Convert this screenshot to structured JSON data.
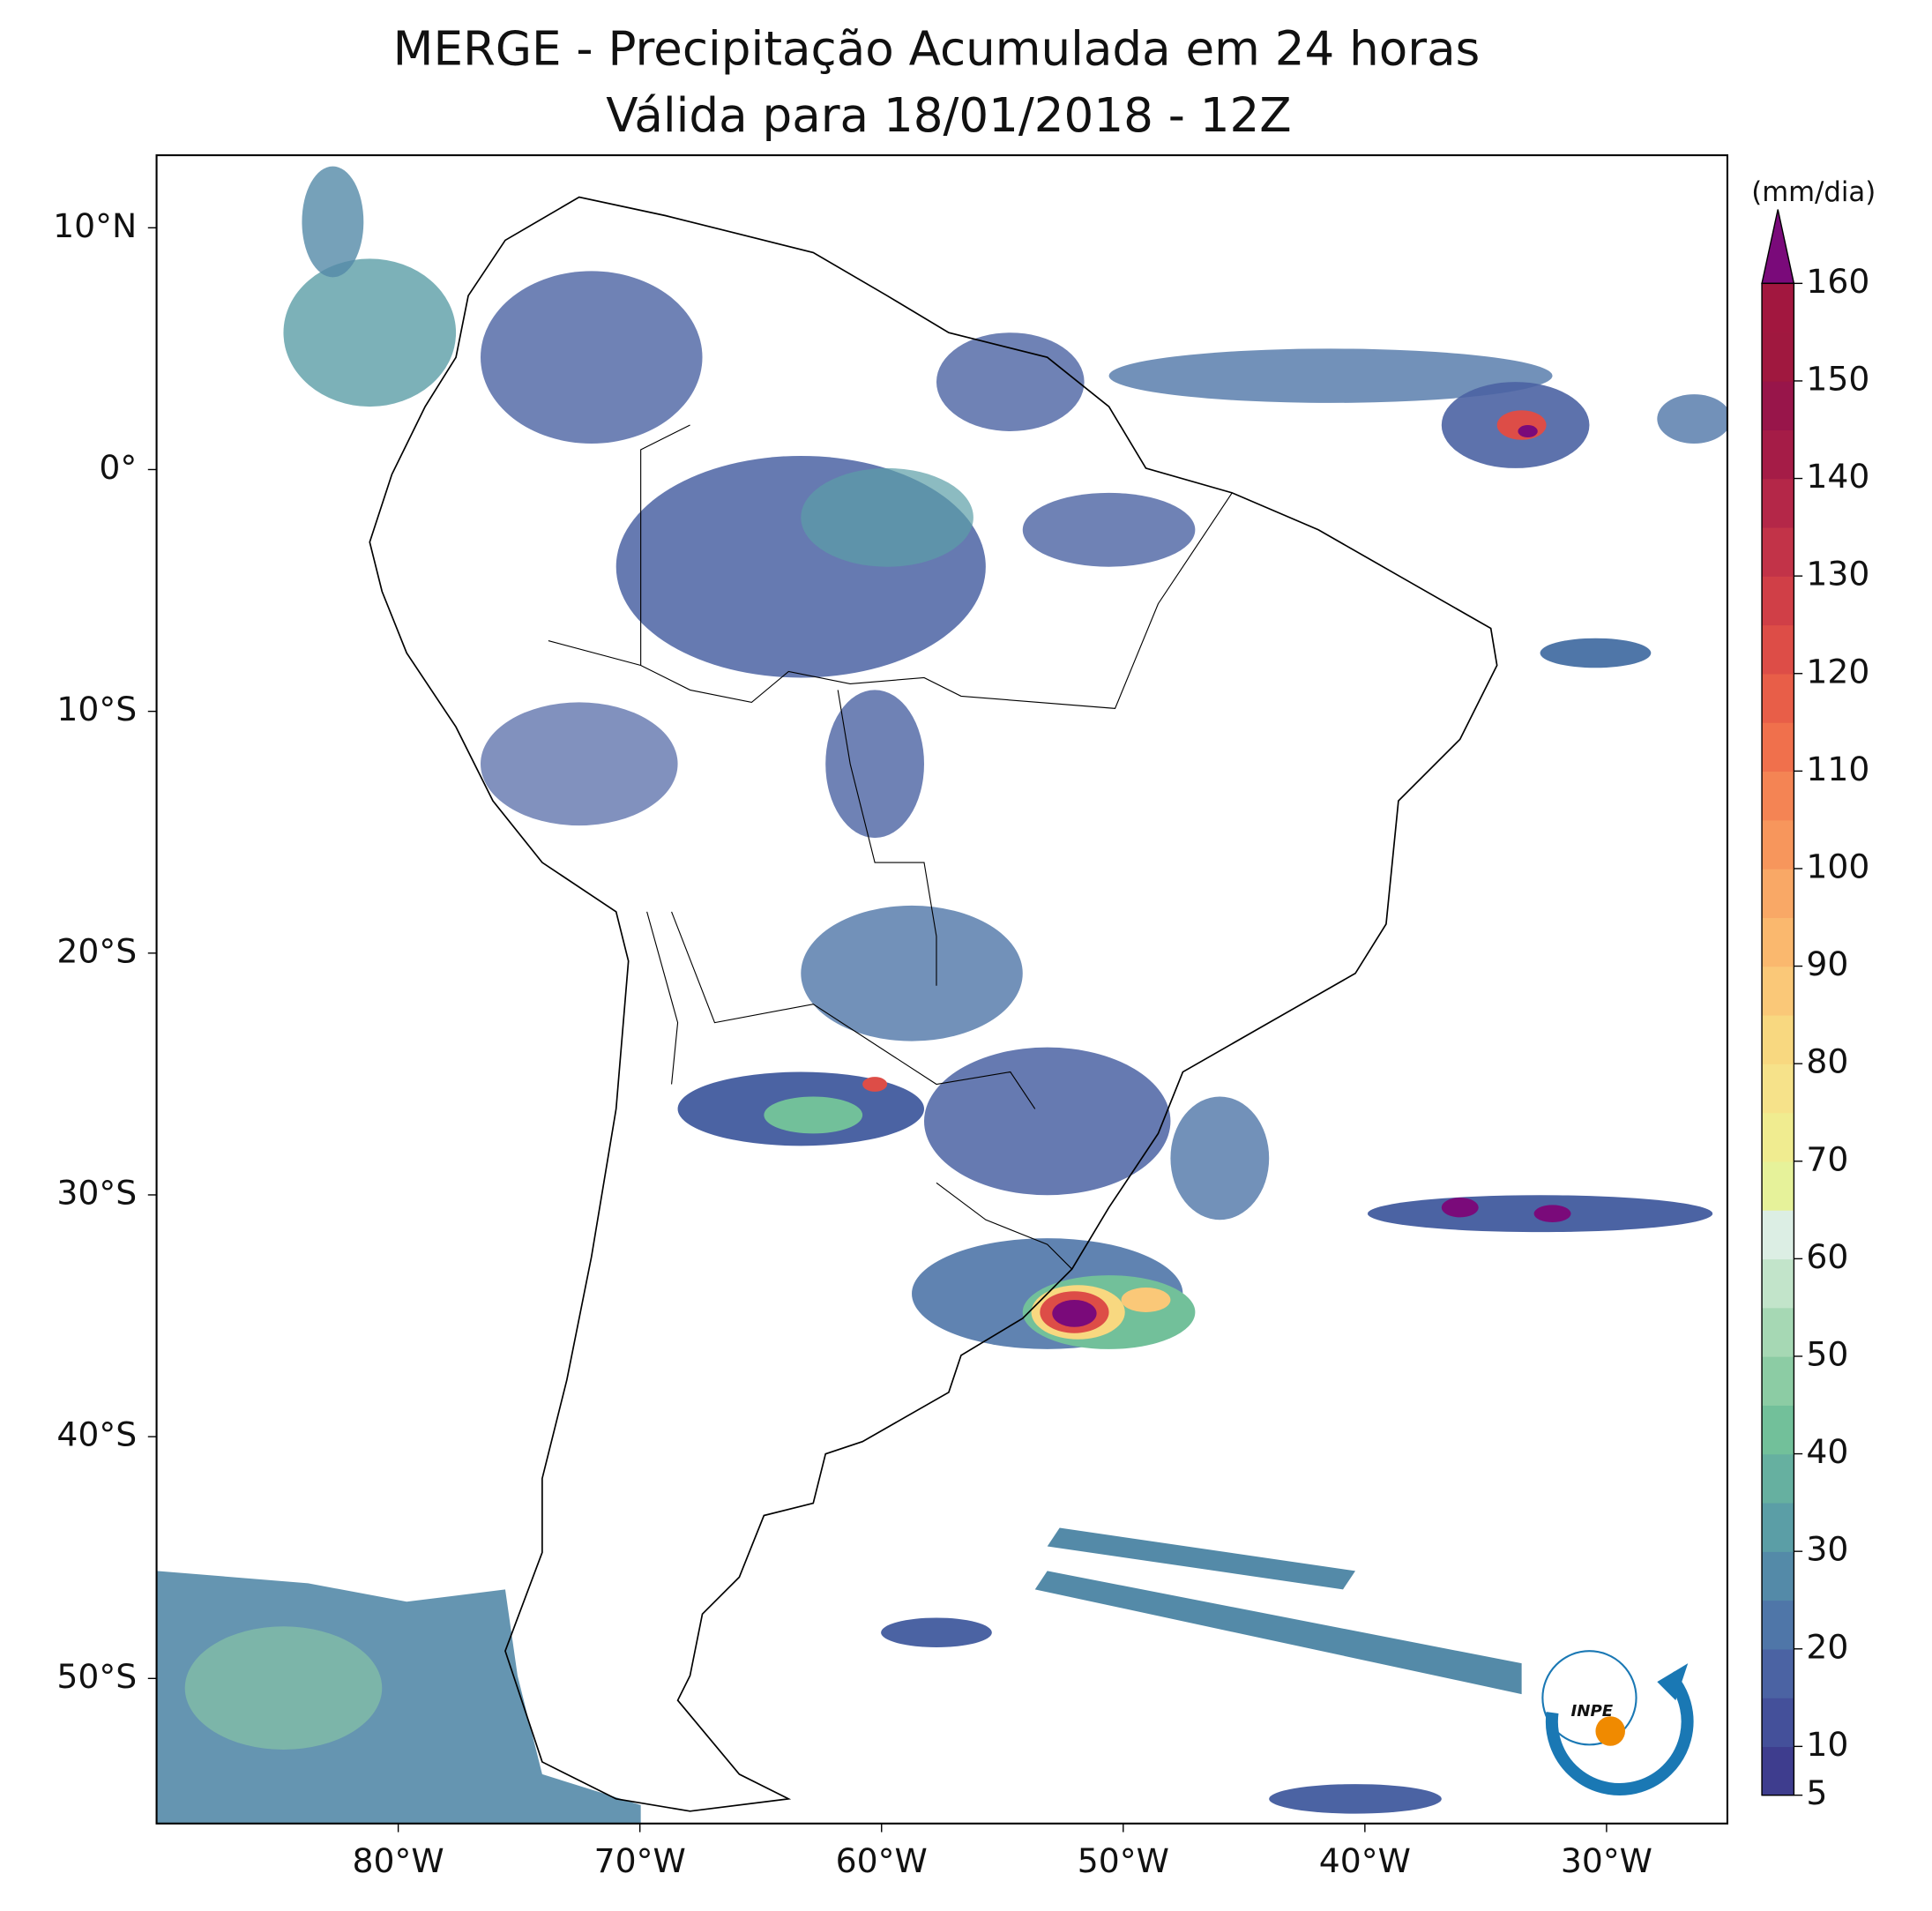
{
  "chart_data": {
    "type": "map",
    "title": "MERGE - Precipitação Acumulada em 24 horas",
    "subtitle": "Válida para 18/01/2018 - 12Z",
    "xlim": [
      -90,
      -25
    ],
    "ylim": [
      -56,
      13
    ],
    "xticks": [
      {
        "value": -80,
        "label": "80°W"
      },
      {
        "value": -70,
        "label": "70°W"
      },
      {
        "value": -60,
        "label": "60°W"
      },
      {
        "value": -50,
        "label": "50°W"
      },
      {
        "value": -40,
        "label": "40°W"
      },
      {
        "value": -30,
        "label": "30°W"
      }
    ],
    "yticks": [
      {
        "value": 10,
        "label": "10°N"
      },
      {
        "value": 0,
        "label": "0°"
      },
      {
        "value": -10,
        "label": "10°S"
      },
      {
        "value": -20,
        "label": "20°S"
      },
      {
        "value": -30,
        "label": "30°S"
      },
      {
        "value": -40,
        "label": "40°S"
      },
      {
        "value": -50,
        "label": "50°S"
      }
    ],
    "colorbar": {
      "label": "(mm/dia)",
      "lim": [
        5,
        160
      ],
      "ticks": [
        5,
        10,
        20,
        30,
        40,
        50,
        60,
        70,
        80,
        90,
        100,
        110,
        120,
        130,
        140,
        150,
        160
      ],
      "colors": [
        "#3e3d8e",
        "#44509a",
        "#4b63a3",
        "#4f76a8",
        "#548aa8",
        "#5b9ea6",
        "#66b0a0",
        "#72c09a",
        "#8ccca4",
        "#a6d8b4",
        "#c2e4ca",
        "#dceee4",
        "#e6f29a",
        "#f0ec90",
        "#f6e28a",
        "#f8d880",
        "#fac878",
        "#fab86e",
        "#f9a866",
        "#f7965c",
        "#f48454",
        "#f0704c",
        "#e85e48",
        "#dd4d47",
        "#d03f47",
        "#c23348",
        "#b42748",
        "#a51c47",
        "#98154a",
        "#a0183f",
        "#a2173f"
      ],
      "extend_color": "#7a0a7a"
    },
    "logo": "INPE"
  }
}
